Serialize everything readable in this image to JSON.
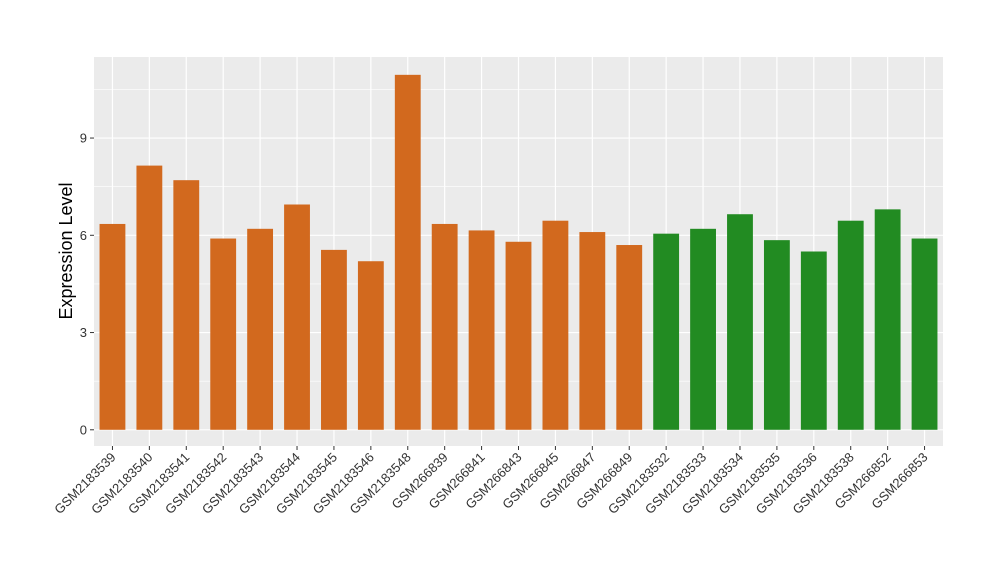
{
  "chart_data": {
    "type": "bar",
    "ylabel": "Expression Level",
    "xlabel": "",
    "ylim": [
      -0.5,
      11.5
    ],
    "yticks": [
      0,
      3,
      6,
      9
    ],
    "grid": true,
    "panel_background": "#EBEBEB",
    "grid_color": "#FFFFFF",
    "categories": [
      "GSM2183539",
      "GSM2183540",
      "GSM2183541",
      "GSM2183542",
      "GSM2183543",
      "GSM2183544",
      "GSM2183545",
      "GSM2183546",
      "GSM2183548",
      "GSM266839",
      "GSM266841",
      "GSM266843",
      "GSM266845",
      "GSM266847",
      "GSM266849",
      "GSM2183532",
      "GSM2183533",
      "GSM2183534",
      "GSM2183535",
      "GSM2183536",
      "GSM2183538",
      "GSM266852",
      "GSM266853"
    ],
    "values": [
      6.35,
      8.15,
      7.7,
      5.9,
      6.2,
      6.95,
      5.55,
      5.2,
      10.95,
      6.35,
      6.15,
      5.8,
      6.45,
      6.1,
      5.7,
      6.05,
      6.2,
      6.65,
      5.85,
      5.5,
      6.45,
      6.8,
      5.9
    ],
    "groups": [
      0,
      0,
      0,
      0,
      0,
      0,
      0,
      0,
      0,
      0,
      0,
      0,
      0,
      0,
      0,
      1,
      1,
      1,
      1,
      1,
      1,
      1,
      1
    ],
    "group_colors": [
      "#D2691E",
      "#228B22"
    ]
  }
}
